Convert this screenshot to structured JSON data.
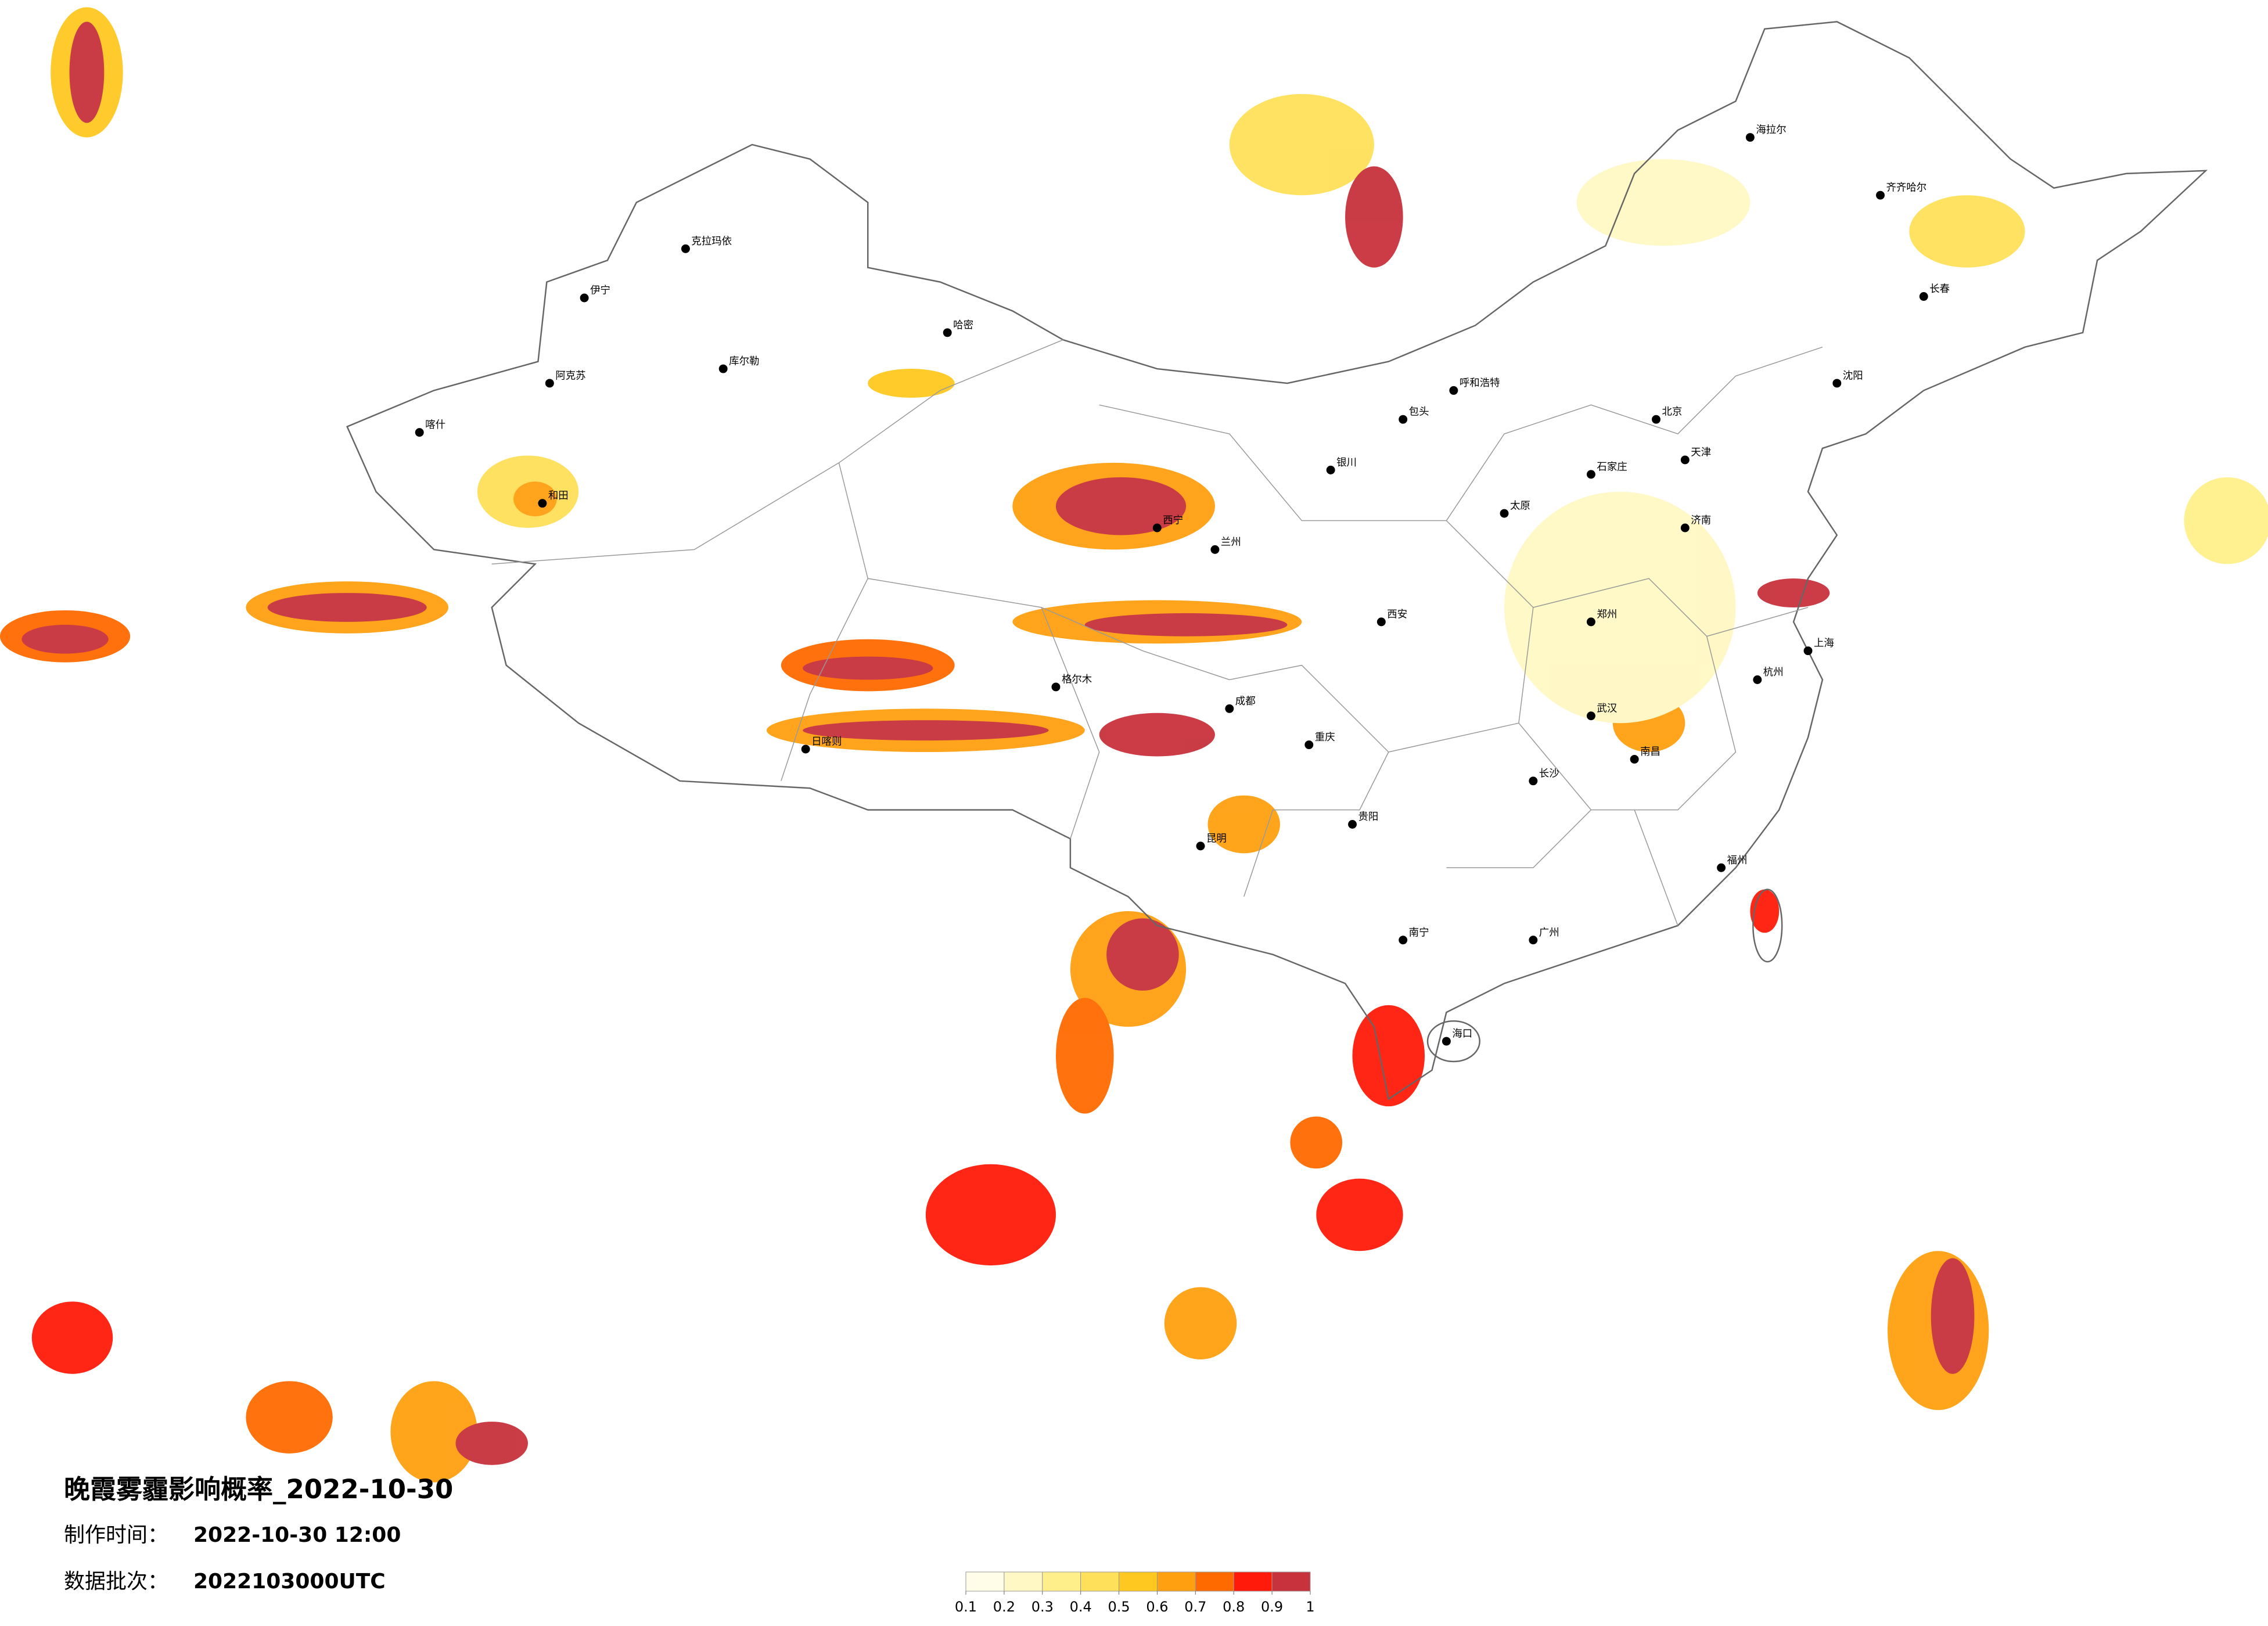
{
  "title": "晚霞雾霾影响概率_2022-10-30",
  "info": [
    {
      "label": "制作时间：",
      "value": "2022-10-30 12:00"
    },
    {
      "label": "数据批次：",
      "value": "2022103000UTC"
    }
  ],
  "legend": {
    "ticks": [
      0.1,
      0.2,
      0.3,
      0.4,
      0.5,
      0.6,
      0.7,
      0.8,
      0.9,
      1
    ],
    "colors": [
      "#fffde8",
      "#fff8c4",
      "#ffef8a",
      "#ffe05a",
      "#ffc820",
      "#ffa010",
      "#ff6a00",
      "#ff1a0a",
      "#c8323c"
    ]
  },
  "cities": [
    "克拉玛依",
    "伊宁",
    "阿克苏",
    "喀什",
    "和田",
    "库尔勒",
    "哈密",
    "日喀则",
    "呼和浩特",
    "包头",
    "北京",
    "天津",
    "石家庄",
    "济南",
    "郑州",
    "武汉",
    "长沙",
    "南昌",
    "杭州",
    "上海",
    "广州",
    "南宁",
    "昆明",
    "贵阳",
    "成都",
    "重庆",
    "西安",
    "兰州",
    "西宁",
    "银川",
    "太原",
    "长春",
    "沈阳",
    "海拉尔",
    "齐齐哈尔",
    "格尔木",
    "福州",
    "海口"
  ]
}
